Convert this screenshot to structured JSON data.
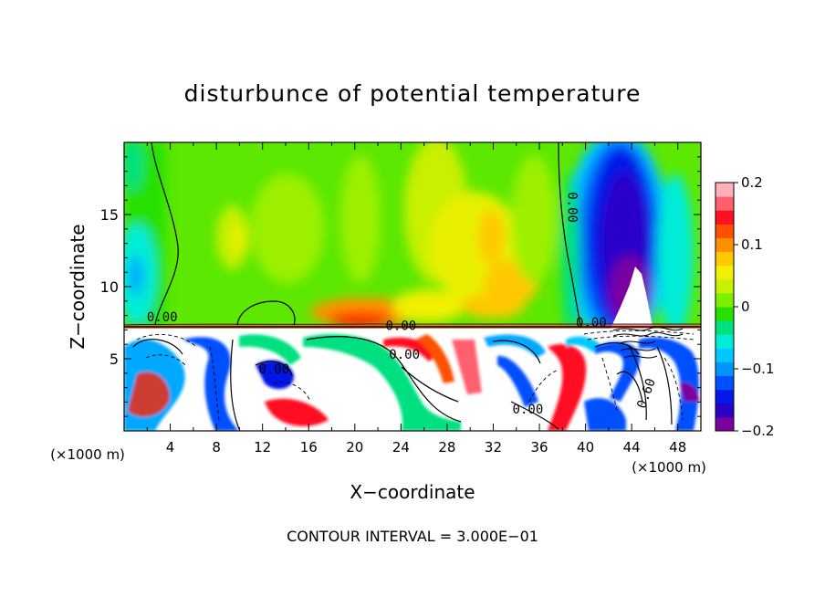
{
  "chart_data": {
    "type": "heatmap",
    "title": "disturbunce of potential temperature",
    "xlabel": "X−coordinate",
    "ylabel": "Z−coordinate",
    "x_unit_left": "(×1000 m)",
    "x_unit_right": "(×1000 m)",
    "footer": "CONTOUR INTERVAL = 3.000E−01",
    "xlim": [
      0,
      50
    ],
    "ylim": [
      0,
      20
    ],
    "x_ticks": [
      4,
      8,
      12,
      16,
      20,
      24,
      28,
      32,
      36,
      40,
      44,
      48
    ],
    "y_ticks": [
      5,
      10,
      15
    ],
    "colorbar": {
      "range": [
        -0.2,
        0.2
      ],
      "ticks": [
        0.2,
        0.1,
        0,
        -0.1,
        -0.2
      ],
      "tick_labels": [
        "0.2",
        "0.1",
        "0",
        "−0.1",
        "−0.2"
      ],
      "colors": [
        "#7a00a0",
        "#2a00c8",
        "#0018e8",
        "#0050ff",
        "#0094ff",
        "#00c8ff",
        "#00ecd8",
        "#00e080",
        "#28e000",
        "#7cf000",
        "#c8f000",
        "#f0f000",
        "#ffc800",
        "#ff9000",
        "#ff5000",
        "#ff1020",
        "#ff6070",
        "#ffb0b8"
      ]
    },
    "contour_labels": [
      {
        "text": "0.00",
        "x": 38.5,
        "y": 15.5,
        "rotate": 90
      },
      {
        "text": "0.00",
        "x": 3.3,
        "y": 7.6
      },
      {
        "text": "0.00",
        "x": 24.0,
        "y": 7.0
      },
      {
        "text": "0.00",
        "x": 40.5,
        "y": 7.2
      },
      {
        "text": "0.00",
        "x": 13.0,
        "y": 4.0
      },
      {
        "text": "0.00",
        "x": 24.3,
        "y": 5.0
      },
      {
        "text": "0.00",
        "x": 35.0,
        "y": 1.2
      },
      {
        "text": "0.60",
        "x": 45.6,
        "y": 2.5,
        "rotate": -70
      }
    ]
  }
}
